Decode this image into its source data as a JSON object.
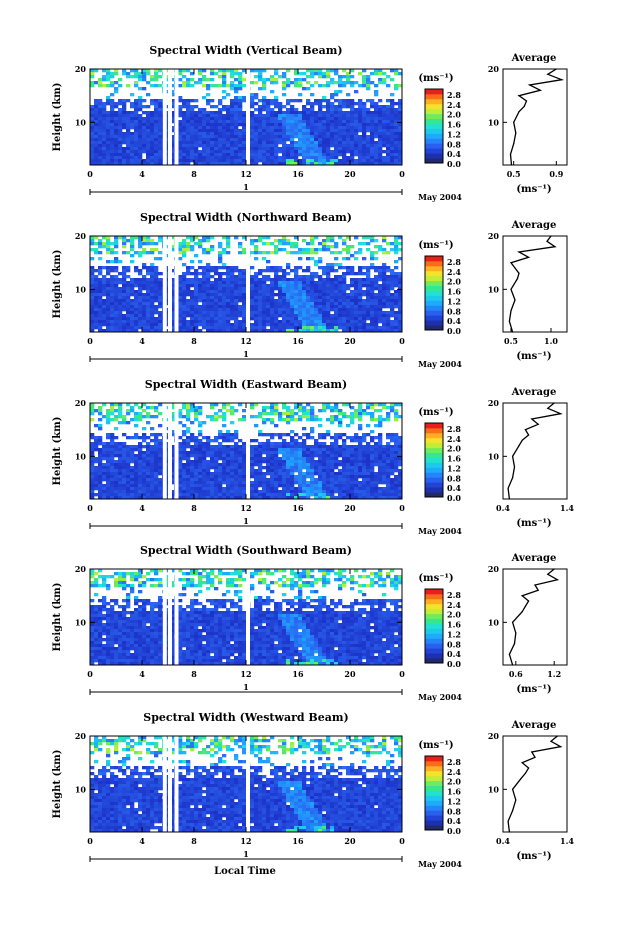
{
  "figure": {
    "x_axis_label": "Local Time",
    "colorbar_unit": "(ms⁻¹)",
    "avg_title": "Average",
    "avg_unit": "(ms⁻¹)",
    "date_label": "May 2004",
    "day_label": "1",
    "y_label": "Height (km)",
    "x_ticks": [
      "0",
      "4",
      "8",
      "12",
      "16",
      "20",
      "0"
    ],
    "y_ticks": [
      "20",
      "10"
    ],
    "colorbar_ticks": [
      "2.8",
      "2.4",
      "2.0",
      "1.6",
      "1.2",
      "0.8",
      "0.4",
      "0.0"
    ]
  },
  "chart_data": [
    {
      "type": "heatmap",
      "title": "Spectral Width (Vertical Beam)",
      "xlabel": "",
      "ylabel": "Height (km)",
      "xlim": [
        0,
        24
      ],
      "ylim": [
        2,
        20
      ],
      "color_range": [
        0.0,
        3.0
      ],
      "data_gaps_hours": [
        5.6,
        6.0,
        6.5,
        12.0
      ],
      "avg_profile": {
        "xlabel": "(ms⁻¹)",
        "x_ticks": [
          "0.5",
          "0.9"
        ],
        "xlim": [
          0.4,
          1.0
        ],
        "height_km": [
          2,
          4,
          6,
          8,
          10,
          12,
          13,
          14,
          15,
          16,
          17,
          18,
          19,
          20
        ],
        "value": [
          0.48,
          0.47,
          0.5,
          0.52,
          0.5,
          0.55,
          0.6,
          0.62,
          0.55,
          0.75,
          0.65,
          0.95,
          0.82,
          0.9
        ]
      }
    },
    {
      "type": "heatmap",
      "title": "Spectral Width (Northward Beam)",
      "xlabel": "",
      "ylabel": "Height (km)",
      "xlim": [
        0,
        24
      ],
      "ylim": [
        2,
        20
      ],
      "color_range": [
        0.0,
        3.0
      ],
      "data_gaps_hours": [
        5.6,
        6.0,
        6.5,
        12.0
      ],
      "avg_profile": {
        "xlabel": "(ms⁻¹)",
        "x_ticks": [
          "0.5",
          "1.0"
        ],
        "xlim": [
          0.4,
          1.2
        ],
        "height_km": [
          2,
          4,
          6,
          8,
          10,
          12,
          13,
          14,
          15,
          16,
          17,
          18,
          19,
          20
        ],
        "value": [
          0.52,
          0.48,
          0.5,
          0.55,
          0.5,
          0.58,
          0.6,
          0.55,
          0.5,
          0.72,
          0.6,
          1.05,
          0.95,
          1.0
        ]
      }
    },
    {
      "type": "heatmap",
      "title": "Spectral Width (Eastward Beam)",
      "xlabel": "",
      "ylabel": "Height (km)",
      "xlim": [
        0,
        24
      ],
      "ylim": [
        2,
        20
      ],
      "color_range": [
        0.0,
        3.0
      ],
      "data_gaps_hours": [
        5.6,
        6.0,
        6.5,
        12.0
      ],
      "avg_profile": {
        "xlabel": "(ms⁻¹)",
        "x_ticks": [
          "0.4",
          "1.4"
        ],
        "xlim": [
          0.4,
          1.4
        ],
        "height_km": [
          2,
          4,
          6,
          8,
          10,
          12,
          13,
          14,
          15,
          16,
          17,
          18,
          19,
          20
        ],
        "value": [
          0.5,
          0.48,
          0.55,
          0.58,
          0.55,
          0.65,
          0.7,
          0.8,
          0.75,
          0.95,
          0.85,
          1.3,
          1.1,
          1.2
        ]
      }
    },
    {
      "type": "heatmap",
      "title": "Spectral Width (Southward Beam)",
      "xlabel": "",
      "ylabel": "Height (km)",
      "xlim": [
        0,
        24
      ],
      "ylim": [
        2,
        20
      ],
      "color_range": [
        0.0,
        3.0
      ],
      "data_gaps_hours": [
        5.6,
        6.0,
        6.5,
        12.0
      ],
      "avg_profile": {
        "xlabel": "(ms⁻¹)",
        "x_ticks": [
          "0.6",
          "1.2"
        ],
        "xlim": [
          0.4,
          1.4
        ],
        "height_km": [
          2,
          4,
          6,
          8,
          10,
          12,
          13,
          14,
          15,
          16,
          17,
          18,
          19,
          20
        ],
        "value": [
          0.55,
          0.5,
          0.58,
          0.6,
          0.55,
          0.7,
          0.75,
          0.8,
          0.7,
          0.95,
          0.9,
          1.25,
          1.1,
          1.2
        ]
      }
    },
    {
      "type": "heatmap",
      "title": "Spectral Width (Westward Beam)",
      "xlabel": "",
      "ylabel": "Height (km)",
      "xlim": [
        0,
        24
      ],
      "ylim": [
        2,
        20
      ],
      "color_range": [
        0.0,
        3.0
      ],
      "data_gaps_hours": [
        5.6,
        6.0,
        6.5,
        12.0
      ],
      "avg_profile": {
        "xlabel": "(ms⁻¹)",
        "x_ticks": [
          "0.4",
          "1.4"
        ],
        "xlim": [
          0.4,
          1.4
        ],
        "height_km": [
          2,
          4,
          6,
          8,
          10,
          12,
          13,
          14,
          15,
          16,
          17,
          18,
          19,
          20
        ],
        "value": [
          0.5,
          0.48,
          0.55,
          0.6,
          0.55,
          0.68,
          0.75,
          0.8,
          0.7,
          0.9,
          0.85,
          1.3,
          1.15,
          1.25
        ]
      }
    }
  ]
}
